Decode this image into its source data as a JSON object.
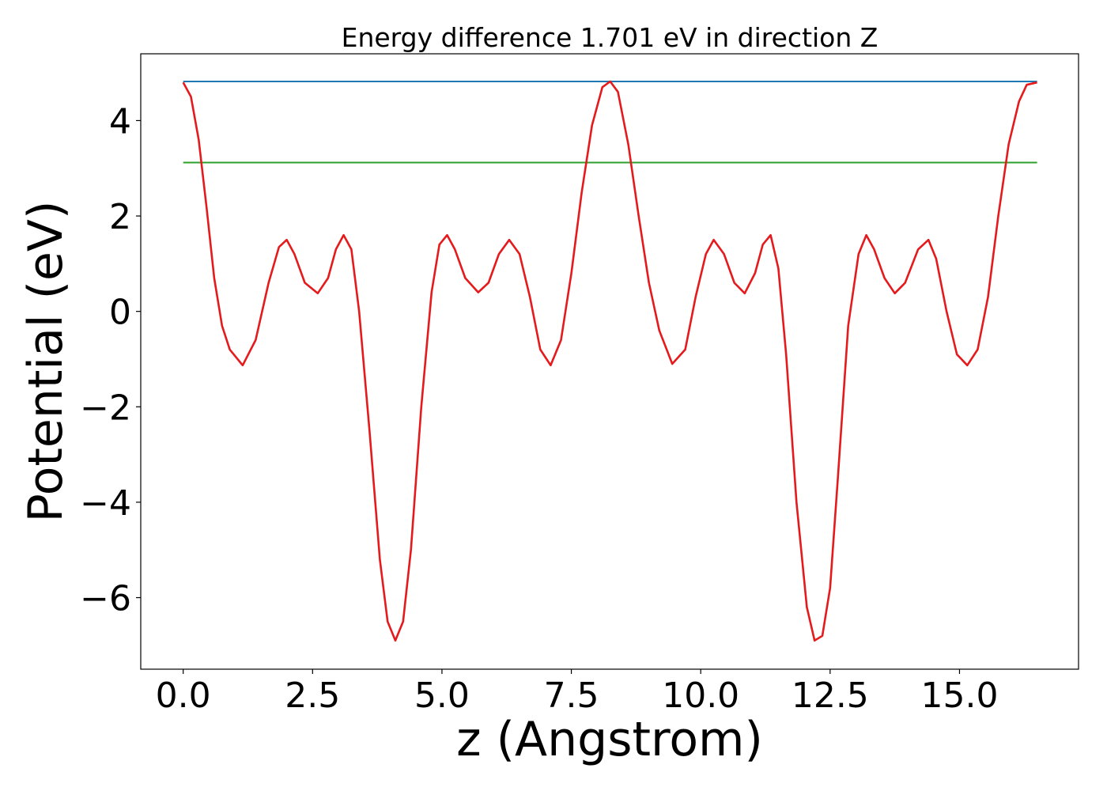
{
  "chart_data": {
    "type": "line",
    "title": "Energy difference 1.701 eV in direction Z",
    "xlabel": "z (Angstrom)",
    "ylabel": "Potential (eV)",
    "xlim": [
      -0.82,
      17.3
    ],
    "ylim": [
      -7.5,
      5.4
    ],
    "x_ticks": [
      0.0,
      2.5,
      5.0,
      7.5,
      10.0,
      12.5,
      15.0
    ],
    "x_tick_labels": [
      "0.0",
      "2.5",
      "5.0",
      "7.5",
      "10.0",
      "12.5",
      "15.0"
    ],
    "y_ticks": [
      4,
      2,
      0,
      -2,
      -4,
      -6
    ],
    "y_tick_labels": [
      "4",
      "2",
      "0",
      "−2",
      "−4",
      "−6"
    ],
    "grid": false,
    "series": [
      {
        "color": "#1f77b4",
        "style": "hline",
        "x": [
          0.0,
          16.5
        ],
        "y": [
          4.82,
          4.82
        ]
      },
      {
        "color": "#2ca02c",
        "style": "hline",
        "x": [
          0.0,
          16.5
        ],
        "y": [
          3.12,
          3.12
        ]
      },
      {
        "color": "#e41a1c",
        "style": "line",
        "x": [
          0.0,
          0.15,
          0.3,
          0.45,
          0.6,
          0.75,
          0.9,
          1.15,
          1.4,
          1.65,
          1.85,
          2.0,
          2.15,
          2.35,
          2.6,
          2.8,
          2.95,
          3.1,
          3.25,
          3.4,
          3.6,
          3.8,
          3.95,
          4.1,
          4.25,
          4.4,
          4.6,
          4.8,
          4.95,
          5.1,
          5.25,
          5.45,
          5.7,
          5.9,
          6.1,
          6.3,
          6.5,
          6.7,
          6.9,
          7.1,
          7.3,
          7.5,
          7.7,
          7.9,
          8.1,
          8.25,
          8.4,
          8.6,
          8.8,
          9.0,
          9.2,
          9.45,
          9.7,
          9.9,
          10.1,
          10.25,
          10.45,
          10.65,
          10.85,
          11.05,
          11.2,
          11.35,
          11.5,
          11.65,
          11.85,
          12.05,
          12.2,
          12.35,
          12.5,
          12.65,
          12.85,
          13.05,
          13.2,
          13.35,
          13.55,
          13.75,
          13.95,
          14.2,
          14.4,
          14.55,
          14.75,
          14.95,
          15.15,
          15.35,
          15.55,
          15.75,
          15.95,
          16.15,
          16.3,
          16.5
        ],
        "y": [
          4.8,
          4.5,
          3.6,
          2.2,
          0.7,
          -0.3,
          -0.8,
          -1.13,
          -0.6,
          0.6,
          1.35,
          1.5,
          1.2,
          0.6,
          0.38,
          0.7,
          1.3,
          1.6,
          1.3,
          0.0,
          -2.5,
          -5.2,
          -6.5,
          -6.9,
          -6.5,
          -5.0,
          -2.0,
          0.4,
          1.4,
          1.6,
          1.3,
          0.7,
          0.4,
          0.6,
          1.2,
          1.5,
          1.2,
          0.3,
          -0.8,
          -1.13,
          -0.6,
          0.8,
          2.5,
          3.9,
          4.7,
          4.82,
          4.6,
          3.5,
          2.0,
          0.6,
          -0.4,
          -1.1,
          -0.8,
          0.3,
          1.2,
          1.5,
          1.2,
          0.6,
          0.38,
          0.8,
          1.4,
          1.6,
          0.9,
          -0.9,
          -4.0,
          -6.2,
          -6.9,
          -6.8,
          -5.8,
          -3.5,
          -0.3,
          1.2,
          1.6,
          1.3,
          0.7,
          0.38,
          0.6,
          1.3,
          1.5,
          1.1,
          0.0,
          -0.9,
          -1.13,
          -0.8,
          0.3,
          2.0,
          3.5,
          4.4,
          4.75,
          4.8
        ]
      }
    ]
  }
}
